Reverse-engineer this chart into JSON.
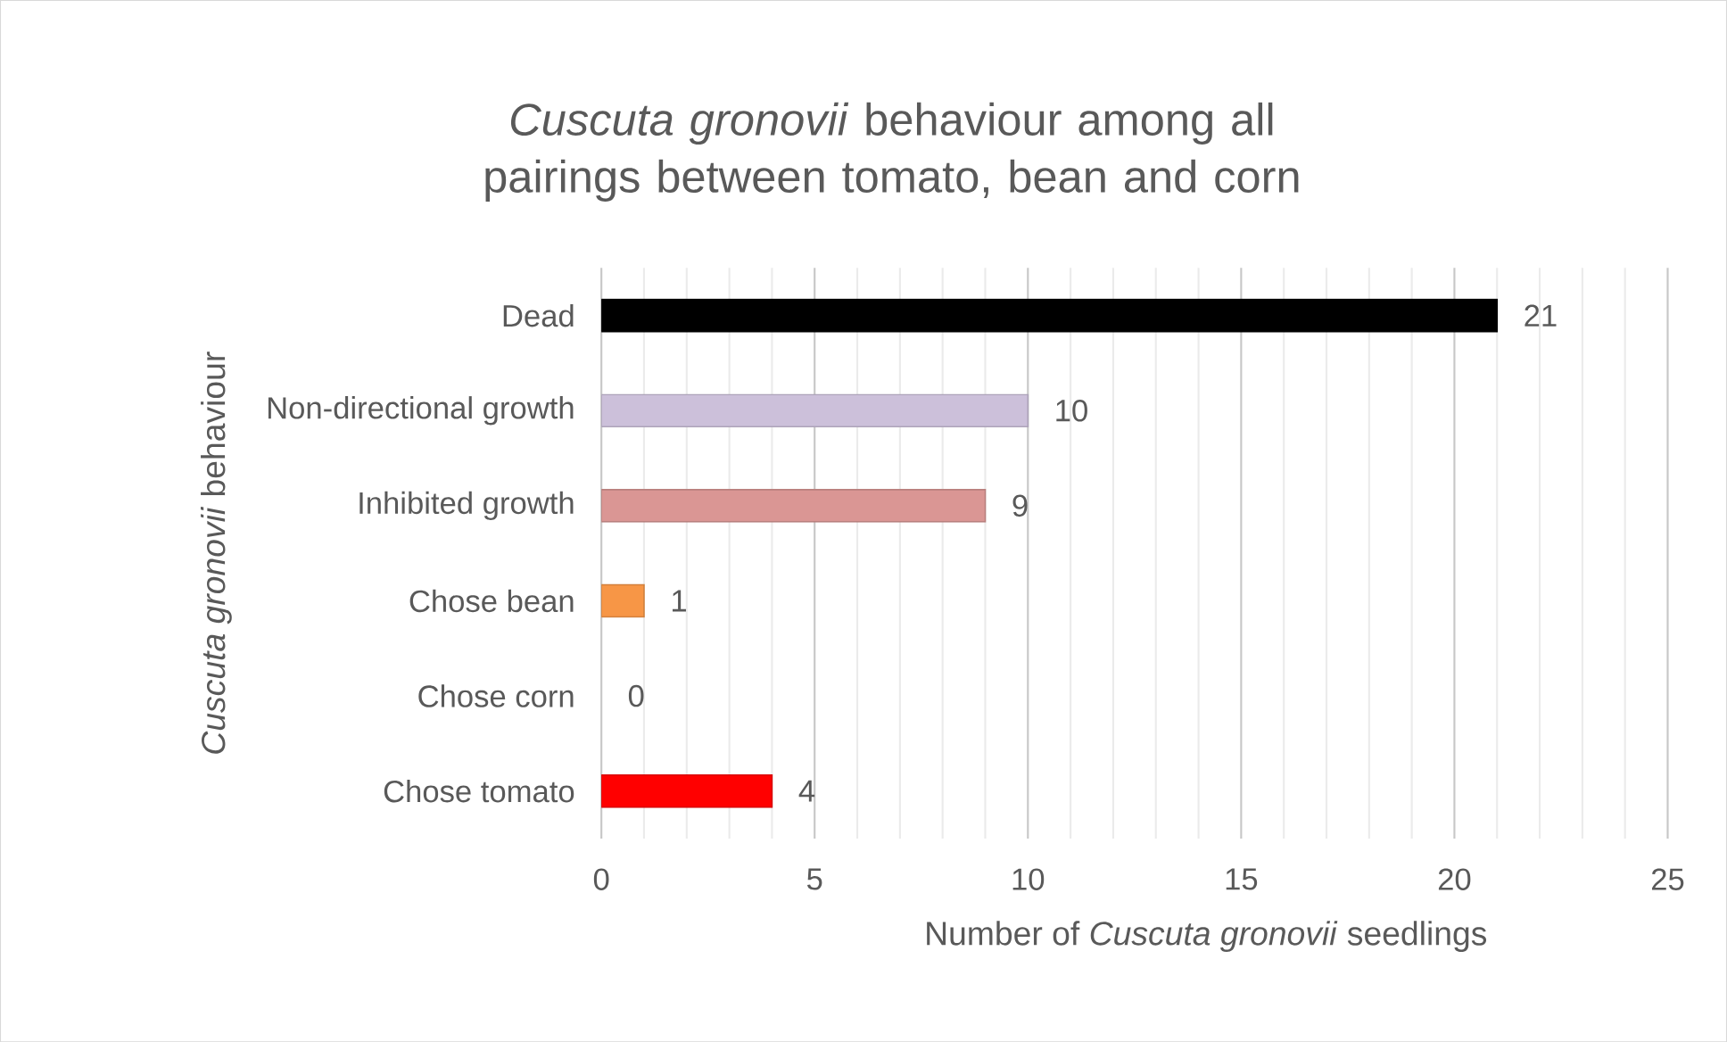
{
  "chart_data": {
    "type": "bar",
    "orientation": "horizontal",
    "title": "*Cuscuta gronovii* behaviour among all pairings between tomato, bean and corn",
    "xlabel": "Number of *Cuscuta gronovii* seedlings",
    "ylabel": "*Cuscuta gronovii* behaviour",
    "categories": [
      "Dead",
      "Non-directional growth",
      "Inhibited growth",
      "Chose bean",
      "Chose corn",
      "Chose tomato"
    ],
    "values": [
      21,
      10,
      9,
      1,
      0,
      4
    ],
    "colors": [
      "#000000",
      "#ccc0da",
      "#da9694",
      "#f79646",
      null,
      "#ff0000"
    ],
    "xlim": [
      0,
      25
    ],
    "xticks": [
      0,
      5,
      10,
      15,
      20,
      25
    ],
    "grid": "x",
    "data_labels": true
  }
}
